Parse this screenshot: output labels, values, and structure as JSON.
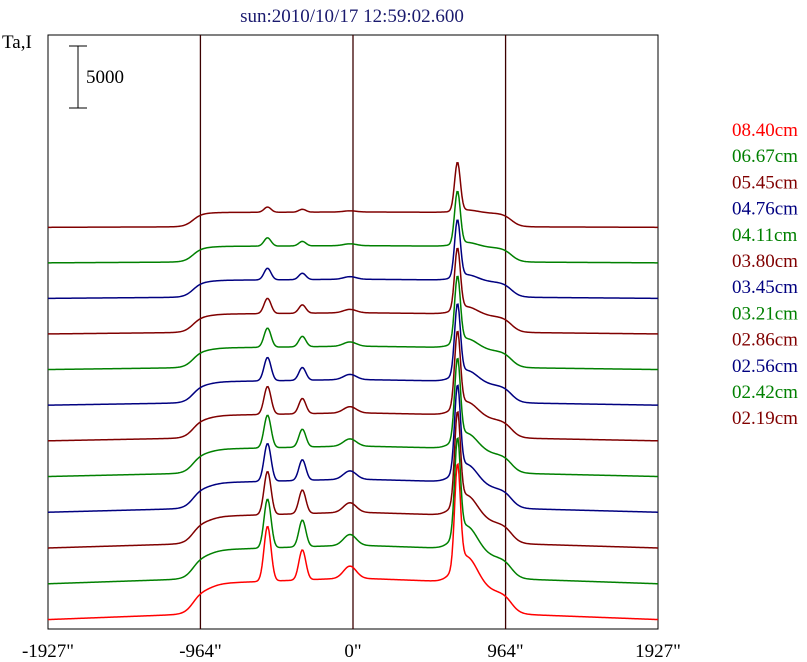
{
  "chart_data": {
    "type": "line",
    "title": "sun:2010/10/17 12:59:02.600",
    "ylabel": "Ta,I",
    "scale_bar_label": "5000",
    "x_ticks": [
      "-1927\"",
      "-964\"",
      "0\"",
      "964\"",
      "1927\""
    ],
    "xlim": [
      -1927,
      1927
    ],
    "vertical_markers": [
      -964,
      0,
      964
    ],
    "colors": {
      "red": "#ff0000",
      "green": "#008000",
      "maroon": "#800000",
      "navy": "#000080",
      "axis": "#000000",
      "marker": "#3b0000"
    },
    "series": [
      {
        "name": "08.40cm",
        "color": "#ff0000",
        "step": 0
      },
      {
        "name": "06.67cm",
        "color": "#008000",
        "step": 1
      },
      {
        "name": "05.45cm",
        "color": "#800000",
        "step": 2
      },
      {
        "name": "04.76cm",
        "color": "#000080",
        "step": 3
      },
      {
        "name": "04.11cm",
        "color": "#008000",
        "step": 4
      },
      {
        "name": "03.80cm",
        "color": "#800000",
        "step": 5
      },
      {
        "name": "03.45cm",
        "color": "#000080",
        "step": 6
      },
      {
        "name": "03.21cm",
        "color": "#008000",
        "step": 7
      },
      {
        "name": "02.86cm",
        "color": "#800000",
        "step": 8
      },
      {
        "name": "02.56cm",
        "color": "#000080",
        "step": 9
      },
      {
        "name": "02.42cm",
        "color": "#008000",
        "step": 10
      },
      {
        "name": "02.19cm",
        "color": "#800000",
        "step": 11
      }
    ]
  }
}
